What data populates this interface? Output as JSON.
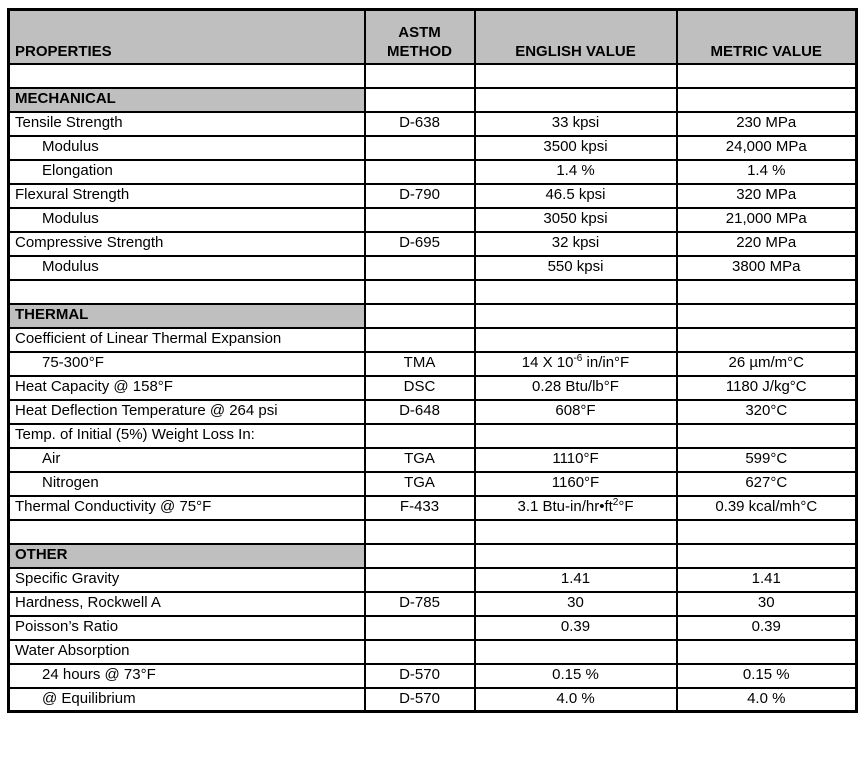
{
  "colors": {
    "header_bg": "#bfbfbf",
    "section_bg": "#bfbfbf",
    "border": "#000000",
    "row_bg": "#ffffff",
    "text": "#000000"
  },
  "table": {
    "header": [
      "PROPERTIES",
      "ASTM\nMETHOD",
      "ENGLISH VALUE",
      "METRIC VALUE"
    ],
    "rows": [
      {
        "type": "spacer"
      },
      {
        "type": "section",
        "property": "MECHANICAL"
      },
      {
        "type": "data",
        "indent": false,
        "property": "Tensile Strength",
        "astm": "D-638",
        "english": "33 kpsi",
        "metric": "230 MPa"
      },
      {
        "type": "data",
        "indent": true,
        "property": "Modulus",
        "astm": "",
        "english": "3500 kpsi",
        "metric": "24,000 MPa"
      },
      {
        "type": "data",
        "indent": true,
        "property": "Elongation",
        "astm": "",
        "english": "1.4 %",
        "metric": "1.4 %"
      },
      {
        "type": "data",
        "indent": false,
        "property": "Flexural Strength",
        "astm": "D-790",
        "english": "46.5 kpsi",
        "metric": "320 MPa"
      },
      {
        "type": "data",
        "indent": true,
        "property": "Modulus",
        "astm": "",
        "english": "3050 kpsi",
        "metric": "21,000 MPa"
      },
      {
        "type": "data",
        "indent": false,
        "property": "Compressive Strength",
        "astm": "D-695",
        "english": "32 kpsi",
        "metric": "220 MPa"
      },
      {
        "type": "data",
        "indent": true,
        "property": "Modulus",
        "astm": "",
        "english": "550 kpsi",
        "metric": "3800 MPa"
      },
      {
        "type": "spacer"
      },
      {
        "type": "section",
        "property": "THERMAL"
      },
      {
        "type": "data",
        "indent": false,
        "property": "Coefficient of Linear Thermal Expansion",
        "astm": "",
        "english": "",
        "metric": ""
      },
      {
        "type": "data",
        "indent": true,
        "property": "75-300°F",
        "astm": "TMA",
        "english": [
          {
            "t": "14 X 10"
          },
          {
            "t": "-6",
            "sup": true
          },
          {
            "t": " in/in°F"
          }
        ],
        "metric": "26 µm/m°C"
      },
      {
        "type": "data",
        "indent": false,
        "property": "Heat Capacity @ 158°F",
        "astm": "DSC",
        "english": "0.28 Btu/lb°F",
        "metric": "1180 J/kg°C"
      },
      {
        "type": "data",
        "indent": false,
        "property": "Heat Deflection Temperature @ 264 psi",
        "astm": "D-648",
        "english": "608°F",
        "metric": "320°C"
      },
      {
        "type": "data",
        "indent": false,
        "property": "Temp. of Initial (5%) Weight Loss In:",
        "astm": "",
        "english": "",
        "metric": ""
      },
      {
        "type": "data",
        "indent": true,
        "property": "Air",
        "astm": "TGA",
        "english": "1110°F",
        "metric": "599°C"
      },
      {
        "type": "data",
        "indent": true,
        "property": "Nitrogen",
        "astm": "TGA",
        "english": "1160°F",
        "metric": "627°C"
      },
      {
        "type": "data",
        "indent": false,
        "property": "Thermal Conductivity @ 75°F",
        "astm": "F-433",
        "english": [
          {
            "t": "3.1 Btu-in/hr•ft"
          },
          {
            "t": "2",
            "sup": true
          },
          {
            "t": "°F"
          }
        ],
        "metric": "0.39 kcal/mh°C"
      },
      {
        "type": "spacer"
      },
      {
        "type": "section",
        "property": "OTHER"
      },
      {
        "type": "data",
        "indent": false,
        "property": "Specific Gravity",
        "astm": "",
        "english": "1.41",
        "metric": "1.41"
      },
      {
        "type": "data",
        "indent": false,
        "property": "Hardness, Rockwell A",
        "astm": "D-785",
        "english": "30",
        "metric": "30"
      },
      {
        "type": "data",
        "indent": false,
        "property": "Poisson’s Ratio",
        "astm": "",
        "english": "0.39",
        "metric": "0.39"
      },
      {
        "type": "data",
        "indent": false,
        "property": "Water Absorption",
        "astm": "",
        "english": "",
        "metric": ""
      },
      {
        "type": "data",
        "indent": true,
        "property": "24 hours @ 73°F",
        "astm": "D-570",
        "english": "0.15 %",
        "metric": "0.15 %"
      },
      {
        "type": "data",
        "indent": true,
        "property": "@ Equilibrium",
        "astm": "D-570",
        "english": "4.0 %",
        "metric": "4.0 %"
      }
    ]
  }
}
